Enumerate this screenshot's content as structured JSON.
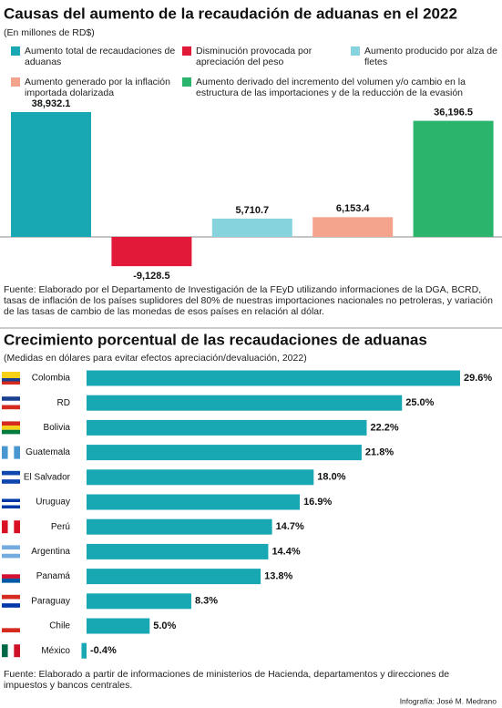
{
  "chart_data": [
    {
      "type": "bar",
      "title": "Causas del aumento de la recaudación de aduanas en el 2022",
      "subtitle": "(En millones de  RD$)",
      "categories": [
        "Aumento total de recaudaciones de aduanas",
        "Disminución provocada por apreciación del peso",
        "Aumento producido por alza de fletes",
        "Aumento generado por la inflación importada dolarizada",
        "Aumento derivado del incremento del volumen y/o cambio en la estructura de las importaciones y  de  la reducción de la evasión"
      ],
      "values": [
        38932.1,
        -9128.5,
        5710.7,
        6153.4,
        36196.5
      ],
      "value_labels": [
        "38,932.1",
        "-9,128.5",
        "5,710.7",
        "6,153.4",
        "36,196.5"
      ],
      "colors": [
        "#17a8b4",
        "#e3193a",
        "#86d3de",
        "#f4a38c",
        "#2bb46c"
      ],
      "bar_order": [
        0,
        1,
        2,
        3,
        4
      ],
      "ylim": [
        -10000,
        40000
      ],
      "source": "Fuente: Elaborado por el Departamento de Investigación de la FEyD utilizando informaciones de la DGA, BCRD, tasas de inflación de los países suplidores del 80% de nuestras importaciones nacionales no petroleras,  y variación de las tasas de cambio de las monedas de esos países en relación al dólar."
    },
    {
      "type": "hbar",
      "title": "Crecimiento porcentual de las recaudaciones de aduanas",
      "subtitle": "(Medidas en dólares para evitar efectos apreciación/devaluación, 2022)",
      "categories": [
        "Colombia",
        "RD",
        "Bolivia",
        "Guatemala",
        "El Salvador",
        "Uruguay",
        "Perú",
        "Argentina",
        "Panamá",
        "Paraguay",
        "Chile",
        "México"
      ],
      "values": [
        29.6,
        25.0,
        22.2,
        21.8,
        18.0,
        16.9,
        14.7,
        14.4,
        13.8,
        8.3,
        5.0,
        -0.4
      ],
      "value_labels": [
        "29.6%",
        "25.0%",
        "22.2%",
        "21.8%",
        "18.0%",
        "16.9%",
        "14.7%",
        "14.4%",
        "13.8%",
        "8.3%",
        "5.0%",
        "-0.4%"
      ],
      "color": "#17a8b4",
      "xlim": [
        -1,
        30
      ],
      "source": "Fuente: Elaborado a partir de informaciones de ministerios de Hacienda, departamentos y direcciones de impuestos y bancos centrales."
    }
  ],
  "credit": "Infografía: José M. Medrano"
}
